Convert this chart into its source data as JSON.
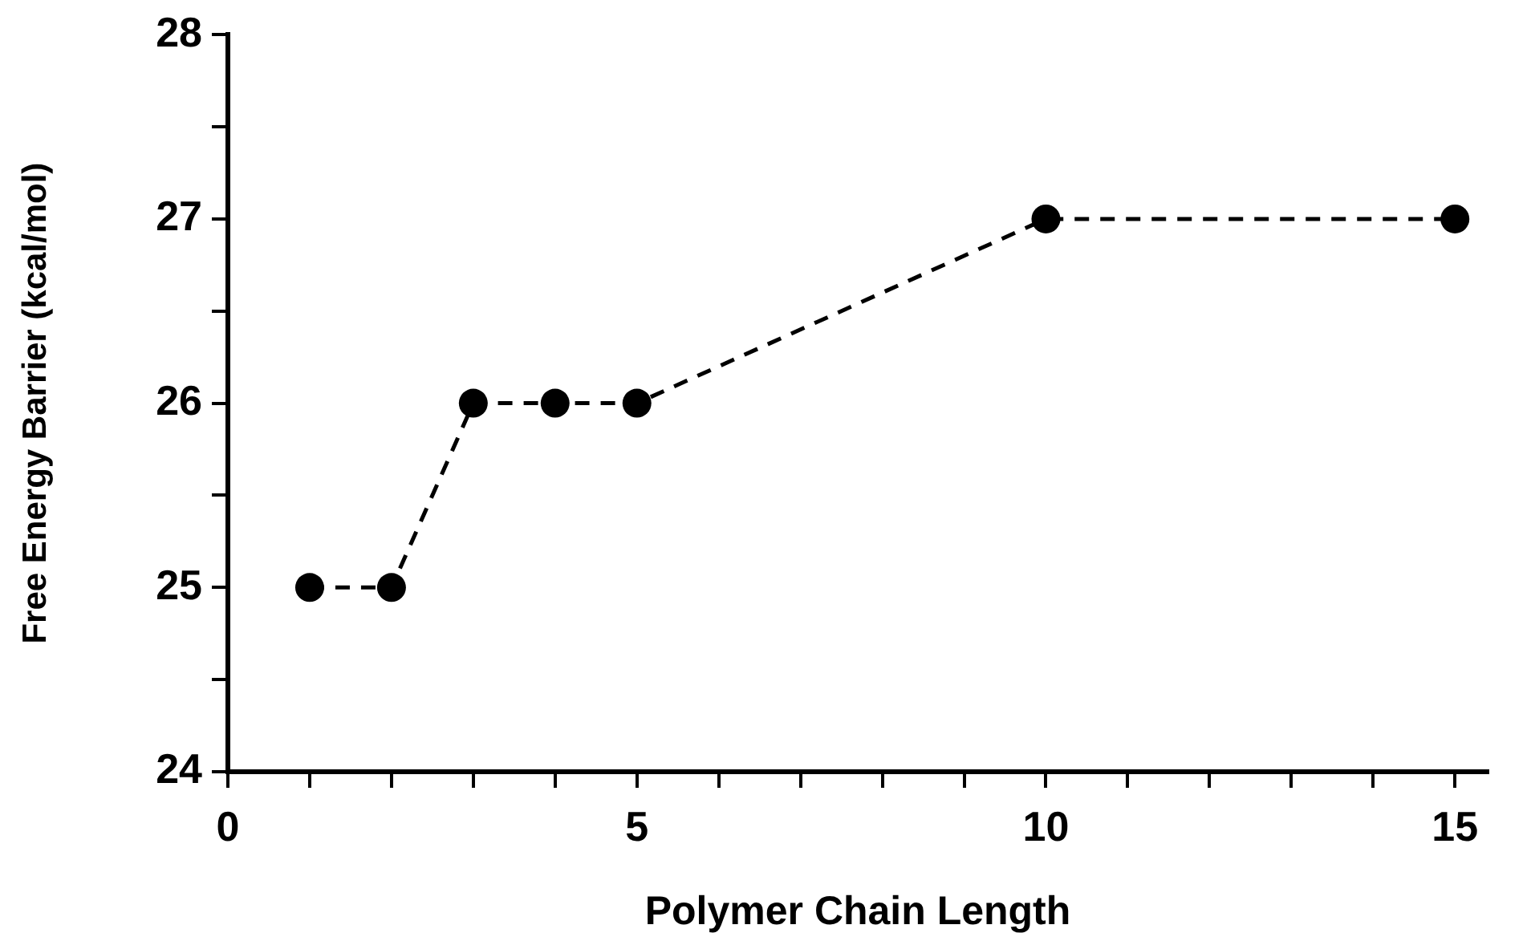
{
  "chart_data": {
    "type": "line",
    "xlabel": "Polymer Chain Length",
    "ylabel": "Free Energy Barrier (kcal/mol)",
    "x": [
      1,
      2,
      3,
      4,
      5,
      10,
      15
    ],
    "series": [
      {
        "color": "#000000",
        "values": [
          25,
          25,
          26,
          26,
          26,
          27,
          27
        ]
      }
    ],
    "xlim": [
      0,
      15.4
    ],
    "xticks": [
      0,
      {
        "value": 1,
        "label": null
      },
      {
        "value": 2,
        "label": null
      },
      {
        "value": 3,
        "label": null
      },
      {
        "value": 4,
        "label": null
      },
      5,
      {
        "value": 6,
        "label": null
      },
      {
        "value": 7,
        "label": null
      },
      {
        "value": 8,
        "label": null
      },
      {
        "value": 9,
        "label": null
      },
      10,
      {
        "value": 11,
        "label": null
      },
      {
        "value": 12,
        "label": null
      },
      {
        "value": 13,
        "label": null
      },
      {
        "value": 14,
        "label": null
      },
      15
    ],
    "ylim": [
      24,
      28
    ],
    "yticks": [
      24,
      {
        "value": 24.5,
        "label": null
      },
      25,
      {
        "value": 25.5,
        "label": null
      },
      26,
      {
        "value": 26.5,
        "label": null
      },
      27,
      {
        "value": 27.5,
        "label": null
      },
      28
    ],
    "grid": false,
    "legend": false,
    "marker": "circle",
    "line_style": "dashed"
  }
}
